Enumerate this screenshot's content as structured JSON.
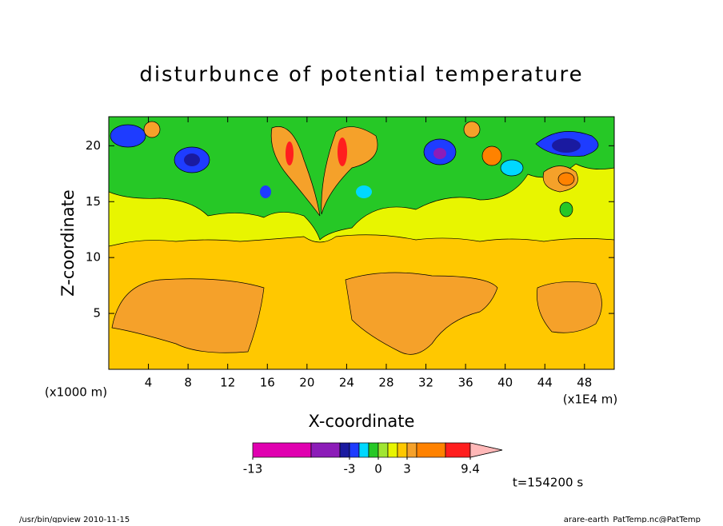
{
  "chart_data": {
    "type": "contour",
    "title": "disturbunce of potential temperature",
    "xlabel": "X-coordinate",
    "ylabel": "Z-coordinate",
    "x_scale_note": "(x1000 m)",
    "x_scale_note2": "(x1E4 m)",
    "xlim": [
      0,
      51
    ],
    "ylim": [
      0,
      22.6
    ],
    "xticks": [
      4,
      8,
      12,
      16,
      20,
      24,
      28,
      32,
      36,
      40,
      44,
      48
    ],
    "yticks": [
      5,
      10,
      15,
      20
    ],
    "colorbar": {
      "colors": [
        "#e000b0",
        "#8c1cb8",
        "#1a1aa0",
        "#1e3cff",
        "#00d8ff",
        "#26c826",
        "#a0e632",
        "#e8f500",
        "#ffc800",
        "#f5a12a",
        "#ff8200",
        "#ff1e1e",
        "#ff8080",
        "#ffb8b8"
      ],
      "levels": [
        -13,
        -3,
        0,
        3,
        9.4
      ]
    },
    "time_label": "t=154200 s",
    "footer_left": "/usr/bin/gpview  2010-11-15",
    "footer_right": "arare-earth_PatTemp.nc@PatTemp"
  }
}
